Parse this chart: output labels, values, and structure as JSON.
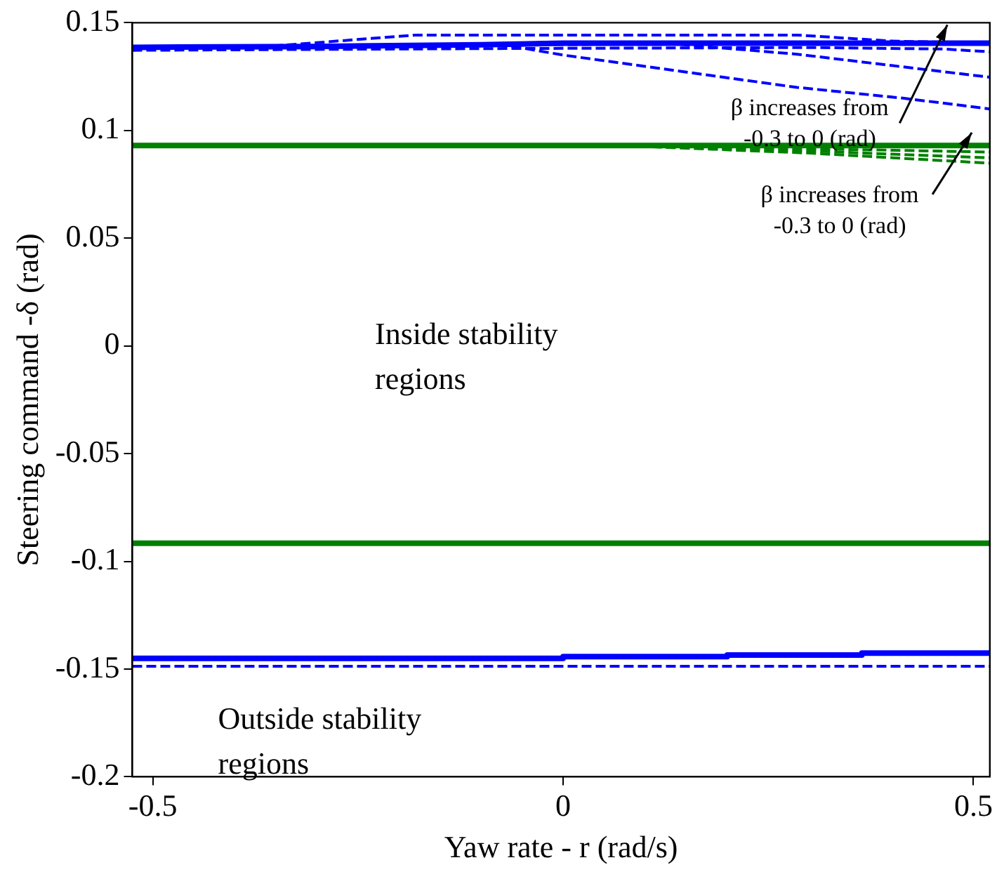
{
  "chart_data": {
    "type": "line",
    "xlabel": "Yaw rate - r (rad/s)",
    "ylabel": "Steering command -δ (rad)",
    "xlim": [
      -0.525,
      0.52
    ],
    "xticks": [
      -0.5,
      0,
      0.5
    ],
    "ylim": [
      -0.2,
      0.15
    ],
    "yticks": [
      -0.2,
      -0.15,
      -0.1,
      -0.05,
      0,
      0.05,
      0.1,
      0.15
    ],
    "grid": false,
    "legend": false,
    "marker": "none",
    "series": [
      {
        "color": "#0000ff",
        "line_style": "dashed",
        "x": [
          -0.525,
          -0.36,
          -0.18,
          0.285,
          0.4,
          0.52
        ],
        "values": [
          0.1386,
          0.139,
          0.1443,
          0.1443,
          0.1415,
          0.1405
        ]
      },
      {
        "color": "#0000ff",
        "line_style": "dashed",
        "x": [
          -0.525,
          -0.1,
          0.3,
          0.464,
          0.52
        ],
        "values": [
          0.1372,
          0.138,
          0.1385,
          0.1378,
          0.1365
        ]
      },
      {
        "color": "#0000ff",
        "line_style": "dashed",
        "x": [
          -0.525,
          -0.1,
          0.14,
          0.285,
          0.52
        ],
        "values": [
          0.1386,
          0.1398,
          0.14,
          0.1354,
          0.1247
        ]
      },
      {
        "color": "#0000ff",
        "line_style": "dashed",
        "x": [
          -0.525,
          -0.1,
          -0.073,
          0,
          0.285,
          0.414,
          0.52
        ],
        "values": [
          0.1386,
          0.1398,
          0.1398,
          0.135,
          0.12,
          0.115,
          0.11
        ]
      },
      {
        "color": "#0000ff",
        "line_style": "solid",
        "x": [
          -0.525,
          -0.3,
          -0.1,
          0,
          0.52
        ],
        "values": [
          0.1386,
          0.139,
          0.1398,
          0.1405,
          0.1405
        ]
      },
      {
        "color": "#008000",
        "line_style": "dashed",
        "x": [
          -0.525,
          0.07,
          0.3,
          0.52
        ],
        "values": [
          0.093,
          0.093,
          0.0915,
          0.09
        ]
      },
      {
        "color": "#008000",
        "line_style": "dashed",
        "x": [
          -0.525,
          0.07,
          0.3,
          0.52
        ],
        "values": [
          0.093,
          0.093,
          0.0905,
          0.0873
        ]
      },
      {
        "color": "#008000",
        "line_style": "dashed",
        "x": [
          -0.525,
          0.07,
          0.3,
          0.52
        ],
        "values": [
          0.093,
          0.093,
          0.0895,
          0.0848
        ]
      },
      {
        "color": "#008000",
        "line_style": "solid",
        "x": [
          -0.525,
          0.52
        ],
        "values": [
          0.093,
          0.093
        ]
      },
      {
        "color": "#008000",
        "line_style": "solid",
        "x": [
          -0.525,
          0.52
        ],
        "values": [
          -0.0916,
          -0.0916
        ]
      },
      {
        "color": "#0000ff",
        "line_style": "dashed",
        "x": [
          -0.525,
          0.52
        ],
        "values": [
          -0.1487,
          -0.1487
        ]
      },
      {
        "color": "#0000ff",
        "line_style": "solid",
        "x": [
          -0.525,
          0,
          0,
          0.2,
          0.2,
          0.364,
          0.364,
          0.52
        ],
        "values": [
          -0.145,
          -0.145,
          -0.1442,
          -0.1442,
          -0.1435,
          -0.1435,
          -0.1426,
          -0.1426
        ]
      }
    ],
    "annotations": [
      "β increases from\n-0.3 to 0 (rad)",
      "β increases from\n-0.3 to 0 (rad)",
      "Inside stability\nregions",
      "Outside stability\nregions"
    ]
  }
}
